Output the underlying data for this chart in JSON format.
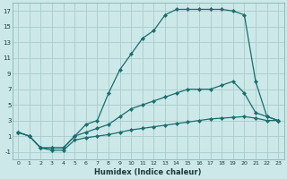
{
  "xlabel": "Humidex (Indice chaleur)",
  "background_color": "#cce8e8",
  "grid_color": "#aacccc",
  "line_color": "#1a6e6e",
  "xlim": [
    -0.5,
    23.5
  ],
  "ylim": [
    -2,
    18
  ],
  "xticks": [
    0,
    1,
    2,
    3,
    4,
    5,
    6,
    7,
    8,
    9,
    10,
    11,
    12,
    13,
    14,
    15,
    16,
    17,
    18,
    19,
    20,
    21,
    22,
    23
  ],
  "yticks": [
    -1,
    1,
    3,
    5,
    7,
    9,
    11,
    13,
    15,
    17
  ],
  "series": [
    {
      "x": [
        0,
        1,
        2,
        3,
        4,
        5,
        6,
        7,
        8,
        9,
        10,
        11,
        12,
        13,
        14,
        15,
        16,
        17,
        18,
        19,
        20,
        21,
        22,
        23
      ],
      "y": [
        1.5,
        1.0,
        -0.5,
        -0.5,
        -0.5,
        1.0,
        2.5,
        3.0,
        6.5,
        9.5,
        11.5,
        13.5,
        14.5,
        16.5,
        17.2,
        17.2,
        17.2,
        17.2,
        17.2,
        17.0,
        16.5,
        8.0,
        3.5,
        3.0
      ]
    },
    {
      "x": [
        0,
        1,
        2,
        3,
        4,
        5,
        6,
        7,
        8,
        9,
        10,
        11,
        12,
        13,
        14,
        15,
        16,
        17,
        18,
        19,
        20,
        21,
        22,
        23
      ],
      "y": [
        1.5,
        1.0,
        -0.5,
        -0.5,
        -0.5,
        1.0,
        1.5,
        2.0,
        2.5,
        3.5,
        4.5,
        5.0,
        5.5,
        6.0,
        6.5,
        7.0,
        7.0,
        7.0,
        7.5,
        8.0,
        6.5,
        4.0,
        3.5,
        3.0
      ]
    },
    {
      "x": [
        0,
        1,
        2,
        3,
        4,
        5,
        6,
        7,
        8,
        9,
        10,
        11,
        12,
        13,
        14,
        15,
        16,
        17,
        18,
        19,
        20,
        21,
        22,
        23
      ],
      "y": [
        1.5,
        1.0,
        -0.5,
        -0.8,
        -0.8,
        0.5,
        0.8,
        1.0,
        1.2,
        1.5,
        1.8,
        2.0,
        2.2,
        2.4,
        2.6,
        2.8,
        3.0,
        3.2,
        3.3,
        3.4,
        3.5,
        3.3,
        3.0,
        3.0
      ]
    }
  ]
}
